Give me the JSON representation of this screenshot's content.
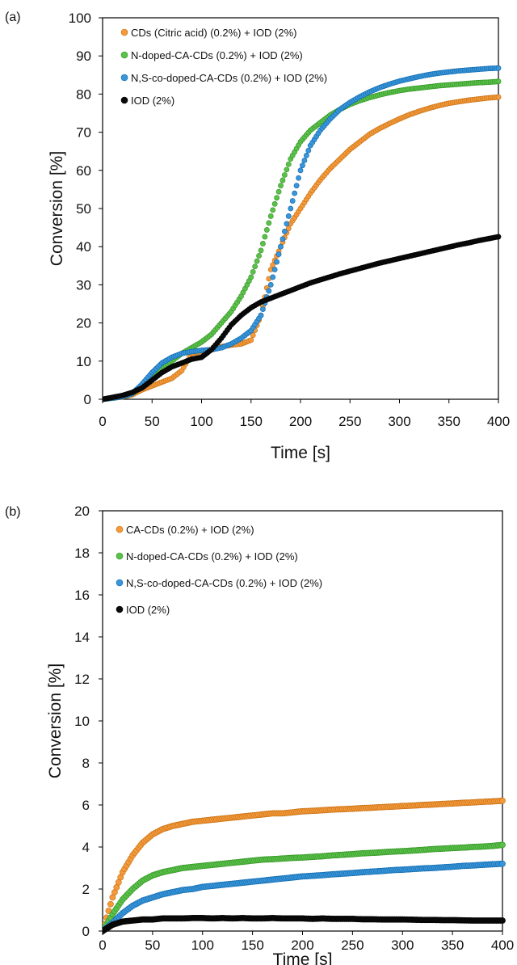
{
  "chart_data": [
    {
      "type": "scatter",
      "panel_label": "(a)",
      "title": "",
      "xlabel": "Time [s]",
      "ylabel": "Conversion [%]",
      "xlim": [
        0,
        400
      ],
      "ylim": [
        0,
        100
      ],
      "xticks": [
        0,
        50,
        100,
        150,
        200,
        250,
        300,
        350,
        400
      ],
      "yticks": [
        0,
        10,
        20,
        30,
        40,
        50,
        60,
        70,
        80,
        90,
        100
      ],
      "grid": false,
      "legend_position": "top-left",
      "series": [
        {
          "name": "CDs (Citric acid) (0.2%) + IOD (2%)",
          "color": "#f39a3c",
          "x": [
            0,
            10,
            20,
            30,
            40,
            50,
            60,
            70,
            80,
            90,
            100,
            110,
            120,
            130,
            140,
            150,
            160,
            170,
            180,
            190,
            200,
            210,
            220,
            230,
            240,
            250,
            260,
            270,
            280,
            290,
            300,
            310,
            320,
            330,
            340,
            350,
            360,
            370,
            380,
            390,
            400
          ],
          "y": [
            0,
            0.3,
            0.6,
            1.2,
            2.5,
            3.5,
            4.5,
            5.5,
            7.5,
            12,
            12.5,
            13,
            13.8,
            14.2,
            14.5,
            15.5,
            22,
            34,
            40,
            46,
            50,
            54,
            57.5,
            60.5,
            63,
            65.5,
            67.5,
            69.5,
            71,
            72.3,
            73.5,
            74.6,
            75.5,
            76.3,
            77,
            77.6,
            78,
            78.4,
            78.7,
            79,
            79.2
          ]
        },
        {
          "name": "N-doped-CA-CDs (0.2%) + IOD (2%)",
          "color": "#5cc04c",
          "x": [
            0,
            10,
            20,
            30,
            40,
            50,
            60,
            70,
            80,
            90,
            100,
            110,
            120,
            130,
            140,
            150,
            160,
            170,
            180,
            190,
            200,
            210,
            220,
            230,
            240,
            250,
            260,
            270,
            280,
            290,
            300,
            310,
            320,
            330,
            340,
            350,
            360,
            370,
            380,
            390,
            400
          ],
          "y": [
            0,
            0.3,
            0.7,
            1.5,
            3.5,
            6,
            8,
            10,
            12,
            13.5,
            15,
            17,
            20,
            23,
            27,
            32,
            39,
            48,
            56,
            63,
            67.5,
            70.5,
            72.5,
            74.5,
            76,
            77.3,
            78.3,
            79.1,
            79.8,
            80.4,
            80.9,
            81.3,
            81.6,
            81.9,
            82.2,
            82.4,
            82.6,
            82.8,
            83,
            83.1,
            83.3
          ]
        },
        {
          "name": "N,S-co-doped-CA-CDs (0.2%) + IOD (2%)",
          "color": "#3a95d9",
          "x": [
            0,
            10,
            20,
            30,
            40,
            50,
            60,
            70,
            80,
            90,
            100,
            110,
            120,
            130,
            140,
            150,
            160,
            170,
            180,
            190,
            200,
            210,
            220,
            230,
            240,
            250,
            260,
            270,
            280,
            290,
            300,
            310,
            320,
            330,
            340,
            350,
            360,
            370,
            380,
            390,
            400
          ],
          "y": [
            0,
            0.3,
            0.7,
            1.5,
            4,
            7,
            9.5,
            11,
            12,
            12.5,
            12.8,
            13,
            13.5,
            14.5,
            16,
            18,
            22,
            30,
            40,
            50,
            60,
            66.5,
            70.5,
            73.5,
            76,
            77.8,
            79.3,
            80.6,
            81.7,
            82.6,
            83.4,
            84,
            84.6,
            85.1,
            85.5,
            85.8,
            86.1,
            86.3,
            86.5,
            86.7,
            86.8
          ]
        },
        {
          "name": "IOD (2%)",
          "color": "#0a0a0a",
          "x": [
            0,
            10,
            20,
            30,
            40,
            50,
            60,
            70,
            80,
            90,
            100,
            110,
            120,
            130,
            140,
            150,
            160,
            170,
            180,
            190,
            200,
            210,
            220,
            230,
            240,
            250,
            260,
            270,
            280,
            290,
            300,
            310,
            320,
            330,
            340,
            350,
            360,
            370,
            380,
            390,
            400
          ],
          "y": [
            0,
            0.5,
            1,
            1.8,
            3,
            5,
            7,
            8.5,
            9.5,
            10.5,
            11,
            13,
            16,
            19.5,
            22,
            24,
            25.5,
            26.5,
            27.5,
            28.5,
            29.5,
            30.5,
            31.3,
            32.1,
            32.9,
            33.6,
            34.3,
            35,
            35.7,
            36.3,
            36.9,
            37.5,
            38.1,
            38.7,
            39.3,
            39.9,
            40.5,
            41,
            41.6,
            42.1,
            42.6
          ]
        }
      ]
    },
    {
      "type": "scatter",
      "panel_label": "(b)",
      "title": "",
      "xlabel": "Time [s]",
      "ylabel": "Conversion [%]",
      "xlim": [
        0,
        400
      ],
      "ylim": [
        0,
        20
      ],
      "xticks": [
        0,
        50,
        100,
        150,
        200,
        250,
        300,
        350,
        400
      ],
      "yticks": [
        0,
        2,
        4,
        6,
        8,
        10,
        12,
        14,
        16,
        18,
        20
      ],
      "grid": false,
      "legend_position": "top-left",
      "series": [
        {
          "name": "CA-CDs (0.2%) + IOD (2%)",
          "color": "#f39a3c",
          "x": [
            0,
            10,
            20,
            30,
            40,
            50,
            60,
            70,
            80,
            90,
            100,
            110,
            120,
            130,
            140,
            150,
            160,
            170,
            180,
            190,
            200,
            210,
            220,
            230,
            240,
            250,
            260,
            270,
            280,
            290,
            300,
            310,
            320,
            330,
            340,
            350,
            360,
            370,
            380,
            390,
            400
          ],
          "y": [
            0,
            1.6,
            2.8,
            3.6,
            4.2,
            4.6,
            4.85,
            5.0,
            5.1,
            5.2,
            5.25,
            5.3,
            5.35,
            5.4,
            5.45,
            5.5,
            5.55,
            5.6,
            5.6,
            5.65,
            5.7,
            5.72,
            5.75,
            5.78,
            5.8,
            5.82,
            5.85,
            5.87,
            5.9,
            5.92,
            5.95,
            5.97,
            6.0,
            6.02,
            6.05,
            6.07,
            6.1,
            6.12,
            6.15,
            6.17,
            6.2
          ]
        },
        {
          "name": "N-doped-CA-CDs (0.2%) + IOD (2%)",
          "color": "#5cc04c",
          "x": [
            0,
            10,
            20,
            30,
            40,
            50,
            60,
            70,
            80,
            90,
            100,
            110,
            120,
            130,
            140,
            150,
            160,
            170,
            180,
            190,
            200,
            210,
            220,
            230,
            240,
            250,
            260,
            270,
            280,
            290,
            300,
            310,
            320,
            330,
            340,
            350,
            360,
            370,
            380,
            390,
            400
          ],
          "y": [
            0,
            0.8,
            1.5,
            2.0,
            2.4,
            2.65,
            2.8,
            2.9,
            3.0,
            3.05,
            3.1,
            3.15,
            3.2,
            3.25,
            3.3,
            3.35,
            3.4,
            3.42,
            3.45,
            3.48,
            3.5,
            3.53,
            3.56,
            3.6,
            3.63,
            3.66,
            3.7,
            3.72,
            3.75,
            3.78,
            3.8,
            3.83,
            3.86,
            3.9,
            3.92,
            3.95,
            3.97,
            4.0,
            4.02,
            4.05,
            4.1
          ]
        },
        {
          "name": "N,S-co-doped-CA-CDs (0.2%) + IOD (2%)",
          "color": "#3a95d9",
          "x": [
            0,
            10,
            20,
            30,
            40,
            50,
            60,
            70,
            80,
            90,
            100,
            110,
            120,
            130,
            140,
            150,
            160,
            170,
            180,
            190,
            200,
            210,
            220,
            230,
            240,
            250,
            260,
            270,
            280,
            290,
            300,
            310,
            320,
            330,
            340,
            350,
            360,
            370,
            380,
            390,
            400
          ],
          "y": [
            0,
            0.4,
            0.85,
            1.2,
            1.45,
            1.6,
            1.75,
            1.85,
            1.95,
            2.0,
            2.1,
            2.15,
            2.2,
            2.25,
            2.3,
            2.35,
            2.4,
            2.45,
            2.5,
            2.55,
            2.6,
            2.63,
            2.66,
            2.7,
            2.73,
            2.76,
            2.8,
            2.83,
            2.86,
            2.9,
            2.92,
            2.95,
            2.98,
            3.0,
            3.03,
            3.06,
            3.1,
            3.12,
            3.15,
            3.18,
            3.2
          ]
        },
        {
          "name": "IOD (2%)",
          "color": "#0a0a0a",
          "x": [
            0,
            10,
            20,
            30,
            40,
            50,
            60,
            70,
            80,
            90,
            100,
            110,
            120,
            130,
            140,
            150,
            160,
            170,
            180,
            190,
            200,
            210,
            220,
            230,
            240,
            250,
            260,
            270,
            280,
            290,
            300,
            310,
            320,
            330,
            340,
            350,
            360,
            370,
            380,
            390,
            400
          ],
          "y": [
            0,
            0.3,
            0.45,
            0.5,
            0.55,
            0.55,
            0.6,
            0.6,
            0.6,
            0.62,
            0.62,
            0.6,
            0.62,
            0.6,
            0.62,
            0.6,
            0.6,
            0.62,
            0.6,
            0.6,
            0.6,
            0.58,
            0.6,
            0.58,
            0.58,
            0.58,
            0.56,
            0.56,
            0.55,
            0.55,
            0.55,
            0.54,
            0.53,
            0.53,
            0.52,
            0.52,
            0.51,
            0.5,
            0.5,
            0.5,
            0.5
          ]
        }
      ]
    }
  ]
}
